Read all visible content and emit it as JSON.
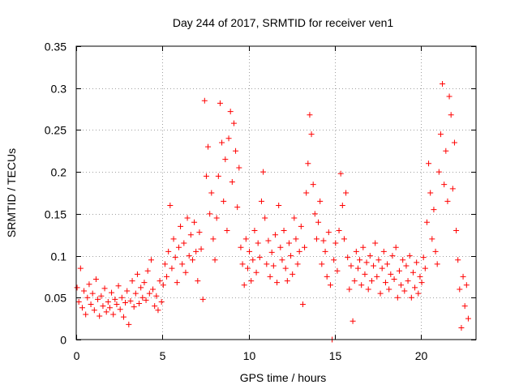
{
  "chart_data": {
    "type": "scatter",
    "title": "Day 244 of 2017, SRMTID for receiver ven1",
    "xlabel": "GPS time / hours",
    "ylabel": "SRMTID / TECUs",
    "xlim": [
      0,
      23.2
    ],
    "ylim": [
      0,
      0.35
    ],
    "xticks": [
      0,
      5,
      10,
      15,
      20
    ],
    "xtick_labels": [
      "0",
      "5",
      "10",
      "15",
      "20"
    ],
    "yticks": [
      0,
      0.05,
      0.1,
      0.15,
      0.2,
      0.25,
      0.3,
      0.35
    ],
    "ytick_labels": [
      "0",
      "0.05",
      "0.1",
      "0.15",
      "0.2",
      "0.25",
      "0.3",
      "0.35"
    ],
    "grid": true,
    "marker": "+",
    "color": "#ff0000",
    "series": [
      {
        "name": "ven1",
        "points": [
          [
            0.05,
            0.062
          ],
          [
            0.15,
            0.045
          ],
          [
            0.25,
            0.085
          ],
          [
            0.35,
            0.038
          ],
          [
            0.45,
            0.058
          ],
          [
            0.55,
            0.03
          ],
          [
            0.65,
            0.05
          ],
          [
            0.75,
            0.066
          ],
          [
            0.85,
            0.042
          ],
          [
            0.95,
            0.055
          ],
          [
            1.05,
            0.035
          ],
          [
            1.15,
            0.072
          ],
          [
            1.25,
            0.048
          ],
          [
            1.35,
            0.028
          ],
          [
            1.45,
            0.052
          ],
          [
            1.55,
            0.04
          ],
          [
            1.65,
            0.061
          ],
          [
            1.75,
            0.033
          ],
          [
            1.85,
            0.045
          ],
          [
            1.95,
            0.038
          ],
          [
            2.05,
            0.056
          ],
          [
            2.15,
            0.03
          ],
          [
            2.25,
            0.048
          ],
          [
            2.35,
            0.042
          ],
          [
            2.45,
            0.064
          ],
          [
            2.55,
            0.036
          ],
          [
            2.65,
            0.05
          ],
          [
            2.75,
            0.027
          ],
          [
            2.85,
            0.044
          ],
          [
            2.95,
            0.058
          ],
          [
            3.05,
            0.018
          ],
          [
            3.15,
            0.046
          ],
          [
            3.25,
            0.07
          ],
          [
            3.35,
            0.039
          ],
          [
            3.45,
            0.055
          ],
          [
            3.55,
            0.078
          ],
          [
            3.65,
            0.043
          ],
          [
            3.75,
            0.062
          ],
          [
            3.85,
            0.05
          ],
          [
            3.95,
            0.068
          ],
          [
            4.05,
            0.047
          ],
          [
            4.15,
            0.082
          ],
          [
            4.25,
            0.055
          ],
          [
            4.35,
            0.095
          ],
          [
            4.45,
            0.06
          ],
          [
            4.55,
            0.04
          ],
          [
            4.65,
            0.052
          ],
          [
            4.75,
            0.035
          ],
          [
            4.85,
            0.07
          ],
          [
            4.95,
            0.045
          ],
          [
            5.05,
            0.065
          ],
          [
            5.15,
            0.09
          ],
          [
            5.25,
            0.075
          ],
          [
            5.35,
            0.105
          ],
          [
            5.45,
            0.16
          ],
          [
            5.55,
            0.085
          ],
          [
            5.65,
            0.12
          ],
          [
            5.75,
            0.098
          ],
          [
            5.85,
            0.068
          ],
          [
            5.95,
            0.11
          ],
          [
            6.05,
            0.135
          ],
          [
            6.15,
            0.09
          ],
          [
            6.25,
            0.115
          ],
          [
            6.35,
            0.08
          ],
          [
            6.45,
            0.145
          ],
          [
            6.55,
            0.1
          ],
          [
            6.65,
            0.125
          ],
          [
            6.75,
            0.095
          ],
          [
            6.85,
            0.14
          ],
          [
            6.95,
            0.105
          ],
          [
            7.05,
            0.07
          ],
          [
            7.15,
            0.128
          ],
          [
            7.25,
            0.108
          ],
          [
            7.35,
            0.048
          ],
          [
            7.45,
            0.285
          ],
          [
            7.55,
            0.195
          ],
          [
            7.65,
            0.23
          ],
          [
            7.75,
            0.15
          ],
          [
            7.85,
            0.175
          ],
          [
            7.95,
            0.12
          ],
          [
            8.05,
            0.095
          ],
          [
            8.15,
            0.145
          ],
          [
            8.25,
            0.195
          ],
          [
            8.35,
            0.282
          ],
          [
            8.45,
            0.235
          ],
          [
            8.55,
            0.165
          ],
          [
            8.65,
            0.215
          ],
          [
            8.75,
            0.13
          ],
          [
            8.85,
            0.24
          ],
          [
            8.95,
            0.272
          ],
          [
            9.05,
            0.188
          ],
          [
            9.15,
            0.258
          ],
          [
            9.25,
            0.225
          ],
          [
            9.35,
            0.158
          ],
          [
            9.45,
            0.205
          ],
          [
            9.55,
            0.11
          ],
          [
            9.65,
            0.09
          ],
          [
            9.75,
            0.065
          ],
          [
            9.85,
            0.12
          ],
          [
            9.95,
            0.085
          ],
          [
            10.05,
            0.105
          ],
          [
            10.15,
            0.07
          ],
          [
            10.25,
            0.095
          ],
          [
            10.35,
            0.13
          ],
          [
            10.45,
            0.08
          ],
          [
            10.55,
            0.115
          ],
          [
            10.65,
            0.098
          ],
          [
            10.75,
            0.165
          ],
          [
            10.85,
            0.2
          ],
          [
            10.95,
            0.145
          ],
          [
            11.05,
            0.09
          ],
          [
            11.15,
            0.118
          ],
          [
            11.25,
            0.075
          ],
          [
            11.35,
            0.104
          ],
          [
            11.45,
            0.088
          ],
          [
            11.55,
            0.125
          ],
          [
            11.65,
            0.068
          ],
          [
            11.75,
            0.16
          ],
          [
            11.85,
            0.11
          ],
          [
            11.95,
            0.095
          ],
          [
            12.05,
            0.13
          ],
          [
            12.15,
            0.085
          ],
          [
            12.25,
            0.07
          ],
          [
            12.35,
            0.115
          ],
          [
            12.45,
            0.1
          ],
          [
            12.55,
            0.078
          ],
          [
            12.65,
            0.145
          ],
          [
            12.75,
            0.12
          ],
          [
            12.85,
            0.09
          ],
          [
            12.95,
            0.105
          ],
          [
            13.05,
            0.135
          ],
          [
            13.15,
            0.042
          ],
          [
            13.25,
            0.11
          ],
          [
            13.35,
            0.175
          ],
          [
            13.45,
            0.21
          ],
          [
            13.55,
            0.268
          ],
          [
            13.65,
            0.245
          ],
          [
            13.75,
            0.185
          ],
          [
            13.85,
            0.15
          ],
          [
            13.95,
            0.12
          ],
          [
            14.05,
            0.14
          ],
          [
            14.15,
            0.165
          ],
          [
            14.25,
            0.09
          ],
          [
            14.35,
            0.118
          ],
          [
            14.45,
            0.105
          ],
          [
            14.55,
            0.075
          ],
          [
            14.65,
            0.128
          ],
          [
            14.75,
            0.065
          ],
          [
            14.85,
            0.0
          ],
          [
            14.95,
            0.095
          ],
          [
            15.05,
            0.115
          ],
          [
            15.15,
            0.082
          ],
          [
            15.25,
            0.13
          ],
          [
            15.35,
            0.198
          ],
          [
            15.45,
            0.16
          ],
          [
            15.55,
            0.12
          ],
          [
            15.65,
            0.175
          ],
          [
            15.75,
            0.098
          ],
          [
            15.85,
            0.06
          ],
          [
            15.95,
            0.088
          ],
          [
            16.05,
            0.022
          ],
          [
            16.15,
            0.07
          ],
          [
            16.25,
            0.105
          ],
          [
            16.35,
            0.085
          ],
          [
            16.45,
            0.095
          ],
          [
            16.55,
            0.065
          ],
          [
            16.65,
            0.11
          ],
          [
            16.75,
            0.078
          ],
          [
            16.85,
            0.092
          ],
          [
            16.95,
            0.06
          ],
          [
            17.05,
            0.1
          ],
          [
            17.15,
            0.07
          ],
          [
            17.25,
            0.088
          ],
          [
            17.35,
            0.115
          ],
          [
            17.45,
            0.075
          ],
          [
            17.55,
            0.095
          ],
          [
            17.65,
            0.055
          ],
          [
            17.75,
            0.085
          ],
          [
            17.85,
            0.105
          ],
          [
            17.95,
            0.068
          ],
          [
            18.05,
            0.09
          ],
          [
            18.15,
            0.06
          ],
          [
            18.25,
            0.078
          ],
          [
            18.35,
            0.1
          ],
          [
            18.45,
            0.072
          ],
          [
            18.55,
            0.11
          ],
          [
            18.65,
            0.05
          ],
          [
            18.75,
            0.082
          ],
          [
            18.85,
            0.065
          ],
          [
            18.95,
            0.095
          ],
          [
            19.05,
            0.058
          ],
          [
            19.15,
            0.088
          ],
          [
            19.25,
            0.07
          ],
          [
            19.35,
            0.1
          ],
          [
            19.45,
            0.05
          ],
          [
            19.55,
            0.08
          ],
          [
            19.65,
            0.062
          ],
          [
            19.75,
            0.092
          ],
          [
            19.85,
            0.055
          ],
          [
            19.95,
            0.075
          ],
          [
            20.05,
            0.068
          ],
          [
            20.15,
            0.098
          ],
          [
            20.25,
            0.085
          ],
          [
            20.35,
            0.14
          ],
          [
            20.45,
            0.21
          ],
          [
            20.55,
            0.175
          ],
          [
            20.65,
            0.12
          ],
          [
            20.75,
            0.155
          ],
          [
            20.85,
            0.105
          ],
          [
            20.95,
            0.09
          ],
          [
            21.05,
            0.2
          ],
          [
            21.15,
            0.245
          ],
          [
            21.25,
            0.305
          ],
          [
            21.35,
            0.185
          ],
          [
            21.45,
            0.225
          ],
          [
            21.55,
            0.165
          ],
          [
            21.65,
            0.29
          ],
          [
            21.75,
            0.268
          ],
          [
            21.85,
            0.18
          ],
          [
            21.95,
            0.235
          ],
          [
            22.05,
            0.13
          ],
          [
            22.15,
            0.095
          ],
          [
            22.25,
            0.06
          ],
          [
            22.35,
            0.014
          ],
          [
            22.45,
            0.075
          ],
          [
            22.55,
            0.04
          ],
          [
            22.65,
            0.065
          ],
          [
            22.75,
            0.025
          ]
        ]
      }
    ]
  }
}
